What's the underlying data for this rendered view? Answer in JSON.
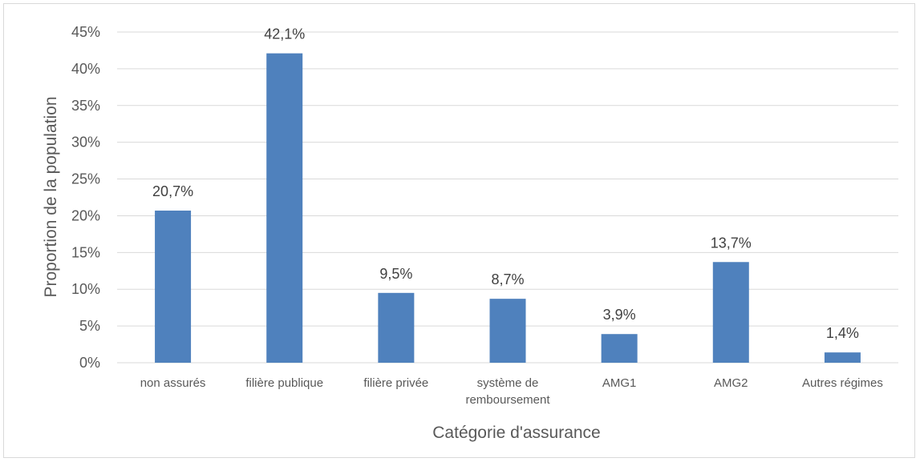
{
  "chart_data": {
    "type": "bar",
    "title": "",
    "xlabel": "Catégorie d'assurance",
    "ylabel": "Proportion de la population",
    "categories": [
      [
        "non assurés"
      ],
      [
        "filière publique"
      ],
      [
        "filière privée"
      ],
      [
        "système de",
        "remboursement"
      ],
      [
        "AMG1"
      ],
      [
        "AMG2"
      ],
      [
        "Autres régimes"
      ]
    ],
    "values": [
      20.7,
      42.1,
      9.5,
      8.7,
      3.9,
      13.7,
      1.4
    ],
    "value_labels": [
      "20,7%",
      "42,1%",
      "9,5%",
      "8,7%",
      "3,9%",
      "13,7%",
      "1,4%"
    ],
    "yticks": [
      0,
      5,
      10,
      15,
      20,
      25,
      30,
      35,
      40,
      45
    ],
    "ytick_labels": [
      "0%",
      "5%",
      "10%",
      "15%",
      "20%",
      "25%",
      "30%",
      "35%",
      "40%",
      "45%"
    ],
    "ylim": [
      0,
      45
    ],
    "grid": true,
    "legend": "none",
    "bar_color": "#4f81bd",
    "grid_color": "#d9d9d9"
  }
}
